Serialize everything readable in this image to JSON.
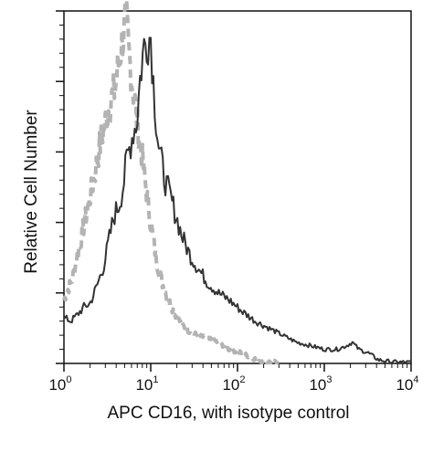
{
  "chart_data": {
    "type": "line",
    "xlabel": "APC CD16, with isotype control",
    "ylabel": "Relative Cell Number",
    "x_scale": "log",
    "xlim": [
      1,
      10000
    ],
    "ylim": [
      0,
      100
    ],
    "x_ticks": [
      {
        "base": "10",
        "exp": "0",
        "value": 1
      },
      {
        "base": "10",
        "exp": "1",
        "value": 10
      },
      {
        "base": "10",
        "exp": "2",
        "value": 100
      },
      {
        "base": "10",
        "exp": "3",
        "value": 1000
      },
      {
        "base": "10",
        "exp": "4",
        "value": 10000
      }
    ],
    "grid": false,
    "legend": "none",
    "series": [
      {
        "style": "solid",
        "color": "#333333",
        "points": [
          [
            1.0,
            13
          ],
          [
            1.2,
            12
          ],
          [
            1.45,
            14
          ],
          [
            1.7,
            16
          ],
          [
            2.0,
            17
          ],
          [
            2.4,
            22
          ],
          [
            2.9,
            28
          ],
          [
            3.3,
            35
          ],
          [
            3.8,
            42
          ],
          [
            4.3,
            45
          ],
          [
            4.8,
            50
          ],
          [
            5.3,
            58
          ],
          [
            5.8,
            62
          ],
          [
            6.3,
            66
          ],
          [
            6.9,
            68
          ],
          [
            7.6,
            82
          ],
          [
            8.4,
            90
          ],
          [
            9.2,
            92
          ],
          [
            10.0,
            93
          ],
          [
            10.6,
            82
          ],
          [
            11.3,
            72
          ],
          [
            12.3,
            62
          ],
          [
            13.5,
            56
          ],
          [
            15.0,
            51
          ],
          [
            17.0,
            47
          ],
          [
            19.5,
            42
          ],
          [
            23.0,
            36
          ],
          [
            28.0,
            31
          ],
          [
            35.0,
            27
          ],
          [
            45.0,
            23
          ],
          [
            60.0,
            20
          ],
          [
            80.0,
            18
          ],
          [
            110.0,
            15
          ],
          [
            160.0,
            12
          ],
          [
            230.0,
            10
          ],
          [
            330.0,
            8
          ],
          [
            480.0,
            6
          ],
          [
            700.0,
            5
          ],
          [
            1000.0,
            4
          ],
          [
            1400.0,
            4
          ],
          [
            1800.0,
            5
          ],
          [
            2100.0,
            6
          ],
          [
            2500.0,
            4
          ],
          [
            3200.0,
            3
          ],
          [
            4200.0,
            1
          ],
          [
            6000.0,
            0.4
          ],
          [
            10000.0,
            0.3
          ]
        ]
      },
      {
        "style": "dashed",
        "color": "#b3b3b3",
        "points": [
          [
            1.0,
            18
          ],
          [
            1.25,
            24
          ],
          [
            1.5,
            33
          ],
          [
            1.8,
            42
          ],
          [
            2.2,
            52
          ],
          [
            2.6,
            62
          ],
          [
            3.1,
            70
          ],
          [
            3.5,
            75
          ],
          [
            3.9,
            78
          ],
          [
            4.3,
            86
          ],
          [
            4.8,
            93
          ],
          [
            5.2,
            98
          ],
          [
            5.6,
            88
          ],
          [
            6.1,
            80
          ],
          [
            6.6,
            74
          ],
          [
            7.2,
            66
          ],
          [
            8.0,
            58
          ],
          [
            9.0,
            48
          ],
          [
            10.0,
            40
          ],
          [
            11.5,
            30
          ],
          [
            13.5,
            23
          ],
          [
            16.0,
            18
          ],
          [
            19.0,
            14
          ],
          [
            23.0,
            11
          ],
          [
            28.0,
            9
          ],
          [
            35.0,
            8
          ],
          [
            45.0,
            7
          ],
          [
            60.0,
            6
          ],
          [
            80.0,
            4
          ],
          [
            110.0,
            3
          ],
          [
            150.0,
            1.5
          ],
          [
            200.0,
            0.5
          ],
          [
            300.0,
            0.2
          ]
        ]
      }
    ]
  }
}
